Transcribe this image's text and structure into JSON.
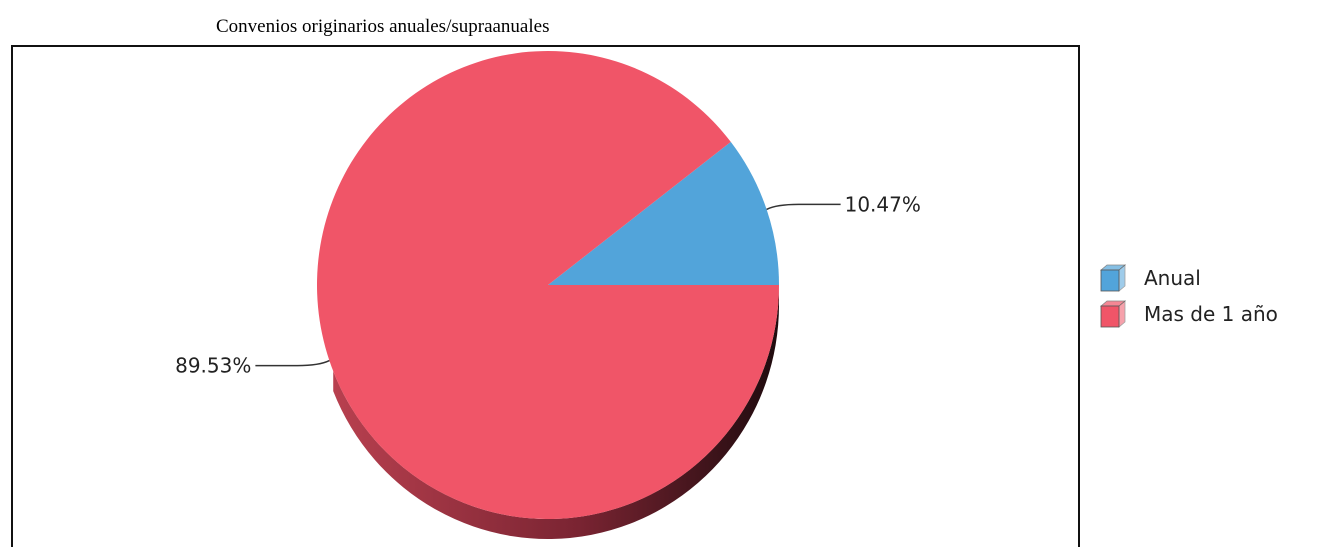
{
  "chart_data": {
    "type": "pie",
    "title": "Convenios originarios anuales/supraanuales",
    "categories": [
      "Anual",
      "Mas de 1 año"
    ],
    "values": [
      10.47,
      89.53
    ],
    "labels": [
      "10.47%",
      "89.53%"
    ],
    "colors": [
      "#52a4da",
      "#f05568"
    ],
    "legend_position": "right",
    "style": "3d"
  }
}
